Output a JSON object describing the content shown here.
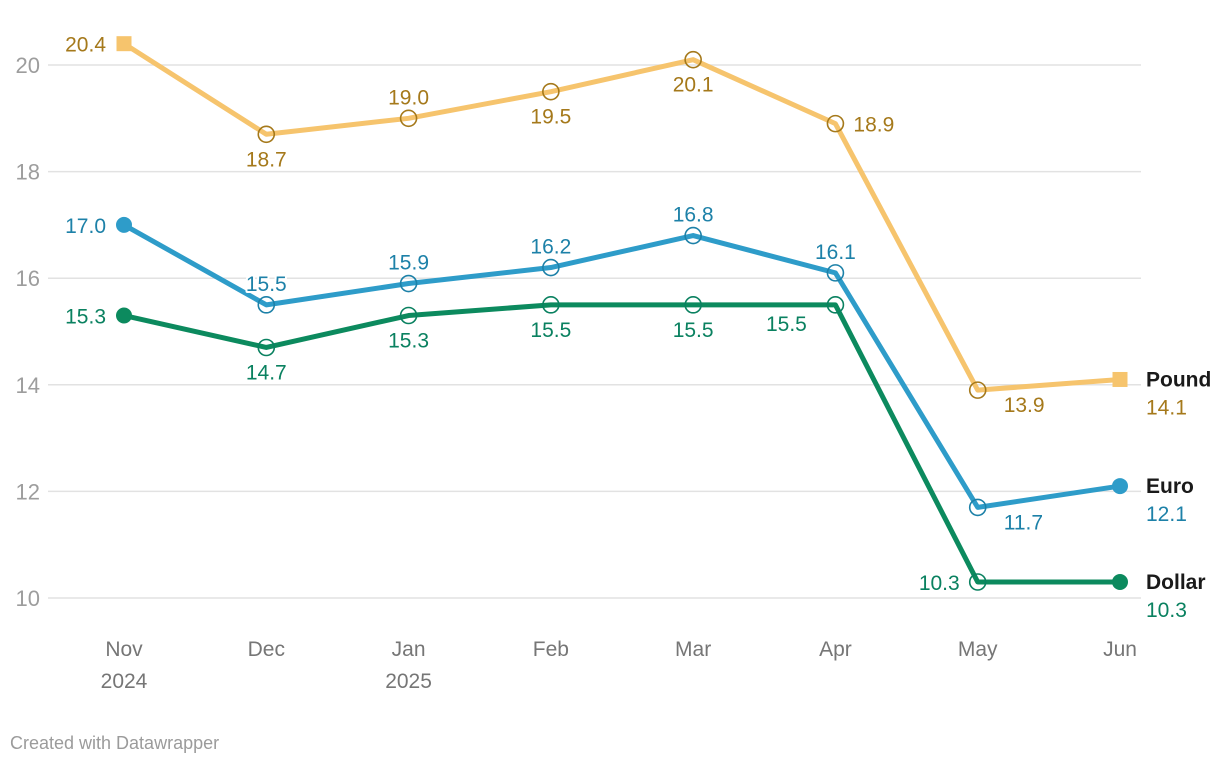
{
  "footer": {
    "credit": "Created with Datawrapper"
  },
  "colors": {
    "background": "#FFFFFF",
    "grid": "#E2E2E2",
    "y_tick_text": "#9D9D9D",
    "x_tick_text": "#767676",
    "series_name_text": "#1A1A1A",
    "credit_text": "#9B9B9B"
  },
  "chart_data": {
    "type": "line",
    "title": "",
    "xlabel": "",
    "ylabel": "",
    "grid": true,
    "legend_position": "direct-right",
    "categories": [
      "Nov",
      "Dec",
      "Jan",
      "Feb",
      "Mar",
      "Apr",
      "May",
      "Jun"
    ],
    "category_sublabels": [
      "2024",
      "",
      "2025",
      "",
      "",
      "",
      "",
      ""
    ],
    "y_ticks": [
      10,
      12,
      14,
      16,
      18,
      20
    ],
    "ylim": [
      10,
      21
    ],
    "series": [
      {
        "name": "Pound",
        "values": [
          20.4,
          18.7,
          19.0,
          19.5,
          20.1,
          18.9,
          13.9,
          14.1
        ],
        "value_labels": [
          "20.4",
          "18.7",
          "19.0",
          "19.5",
          "20.1",
          "18.9",
          "13.9",
          "14.1"
        ],
        "label_positions": [
          "left",
          "below",
          "above",
          "below",
          "below",
          "right",
          "below-right",
          "end"
        ],
        "end_value_label": "14.1",
        "marker": "square",
        "line_color": "#F6C46D",
        "label_color": "#A5791B"
      },
      {
        "name": "Euro",
        "values": [
          17.0,
          15.5,
          15.9,
          16.2,
          16.8,
          16.1,
          11.7,
          12.1
        ],
        "value_labels": [
          "17.0",
          "15.5",
          "15.9",
          "16.2",
          "16.8",
          "16.1",
          "11.7",
          "12.1"
        ],
        "label_positions": [
          "left",
          "above",
          "above",
          "above",
          "above",
          "above",
          "below-right",
          "end"
        ],
        "end_value_label": "12.1",
        "marker": "circle",
        "line_color": "#2E9CC9",
        "label_color": "#1D81A8"
      },
      {
        "name": "Dollar",
        "values": [
          15.3,
          14.7,
          15.3,
          15.5,
          15.5,
          15.5,
          10.3,
          10.3
        ],
        "value_labels": [
          "15.3",
          "14.7",
          "15.3",
          "15.5",
          "15.5",
          "15.5",
          "10.3",
          "10.3"
        ],
        "label_positions": [
          "left",
          "below",
          "below",
          "below",
          "below",
          "below-left",
          "left",
          "end"
        ],
        "end_value_label": "10.3",
        "marker": "circle",
        "line_color": "#0C8A5E",
        "label_color": "#0A8160"
      }
    ]
  }
}
